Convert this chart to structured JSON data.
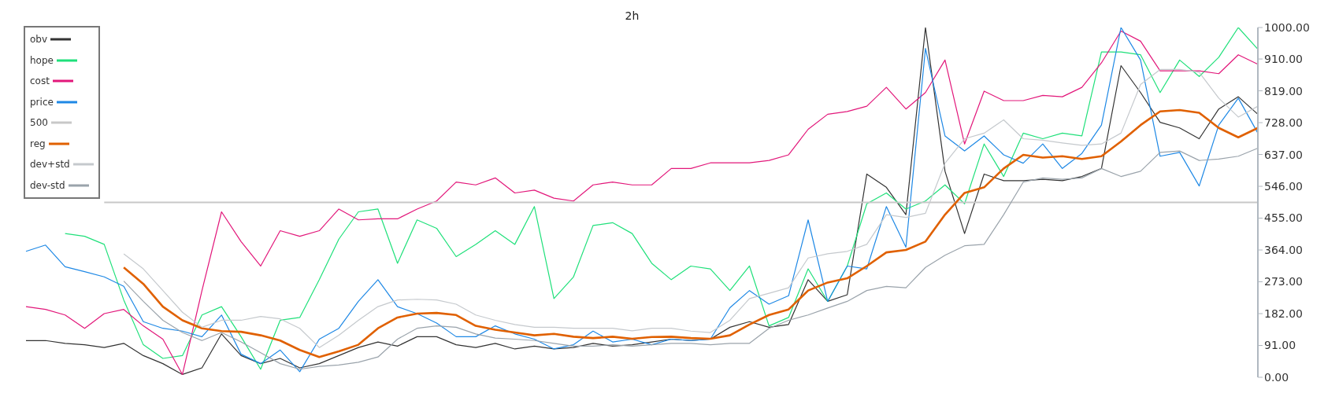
{
  "chart_data": {
    "type": "line",
    "title": "2h",
    "categories": [
      null,
      null,
      null,
      null,
      null,
      null,
      null,
      null,
      null,
      null,
      null,
      null,
      null,
      null,
      null,
      null,
      null,
      null,
      null,
      null,
      null,
      null,
      null,
      null,
      null,
      null,
      null,
      null,
      null,
      null,
      null,
      null,
      null,
      null,
      null,
      null,
      null,
      null,
      null,
      null,
      null,
      null,
      null,
      null,
      null,
      null,
      null,
      null,
      null,
      null,
      null,
      null,
      null,
      null,
      null,
      null,
      null,
      null,
      null,
      null,
      null,
      null,
      null,
      null
    ],
    "series": [
      {
        "name": "obv",
        "color": "#333333",
        "values": [
          105,
          105,
          97,
          93,
          85,
          97,
          62,
          39,
          8,
          27,
          124,
          62,
          39,
          54,
          27,
          39,
          62,
          85,
          101,
          89,
          116,
          116,
          93,
          85,
          97,
          81,
          89,
          81,
          85,
          97,
          89,
          93,
          101,
          109,
          105,
          109,
          143,
          159,
          143,
          151,
          279,
          217,
          236,
          581,
          543,
          465,
          1000,
          589,
          411,
          581,
          562,
          562,
          566,
          562,
          574,
          597,
          891,
          814,
          729,
          713,
          682,
          767,
          802,
          752
        ]
      },
      {
        "name": "hope",
        "color": "#1fe07a",
        "values": [
          null,
          null,
          411,
          403,
          380,
          221,
          93,
          54,
          62,
          178,
          202,
          116,
          23,
          163,
          171,
          279,
          395,
          473,
          481,
          326,
          450,
          426,
          345,
          380,
          419,
          380,
          488,
          225,
          287,
          434,
          442,
          411,
          326,
          279,
          318,
          310,
          248,
          318,
          147,
          171,
          310,
          217,
          318,
          496,
          527,
          481,
          504,
          550,
          496,
          667,
          574,
          698,
          682,
          698,
          690,
          930,
          930,
          922,
          814,
          907,
          860,
          915,
          1000,
          938
        ]
      },
      {
        "name": "cost",
        "color": "#e2177a",
        "values": [
          202,
          194,
          178,
          140,
          182,
          194,
          147,
          109,
          8,
          248,
          473,
          388,
          318,
          419,
          403,
          419,
          481,
          450,
          453,
          453,
          481,
          504,
          558,
          550,
          570,
          527,
          535,
          512,
          504,
          550,
          558,
          550,
          550,
          597,
          597,
          613,
          613,
          613,
          620,
          636,
          709,
          752,
          760,
          775,
          829,
          767,
          814,
          907,
          667,
          818,
          791,
          791,
          806,
          802,
          829,
          899,
          990,
          961,
          876,
          876,
          876,
          868,
          922,
          895
        ]
      },
      {
        "name": "price",
        "color": "#1e88e5",
        "values": [
          360,
          378,
          316,
          302,
          287,
          260,
          159,
          140,
          132,
          116,
          178,
          66,
          39,
          78,
          16,
          109,
          140,
          217,
          279,
          202,
          182,
          155,
          116,
          116,
          147,
          124,
          109,
          81,
          93,
          132,
          101,
          109,
          93,
          109,
          105,
          109,
          199,
          248,
          209,
          233,
          450,
          217,
          318,
          310,
          488,
          372,
          940,
          690,
          647,
          690,
          636,
          612,
          667,
          597,
          640,
          721,
          1000,
          907,
          632,
          643,
          547,
          721,
          798,
          698
        ]
      },
      {
        "name": "500",
        "color": "#c8c8c8",
        "values": [
          null,
          null,
          null,
          null,
          500,
          500,
          500,
          500,
          500,
          500,
          500,
          500,
          500,
          500,
          500,
          500,
          500,
          500,
          500,
          500,
          500,
          500,
          500,
          500,
          500,
          500,
          500,
          500,
          500,
          500,
          500,
          500,
          500,
          500,
          500,
          500,
          500,
          500,
          500,
          500,
          500,
          500,
          500,
          500,
          500,
          500,
          500,
          500,
          500,
          500,
          500,
          500,
          500,
          500,
          500,
          500,
          500,
          500,
          500,
          500,
          500,
          500,
          500,
          500
        ]
      },
      {
        "name": "reg",
        "color": "#e06000",
        "values": [
          null,
          null,
          null,
          null,
          null,
          314,
          267,
          202,
          163,
          140,
          132,
          130,
          120,
          105,
          78,
          58,
          74,
          93,
          140,
          171,
          182,
          184,
          178,
          147,
          136,
          128,
          120,
          124,
          116,
          112,
          116,
          110,
          115,
          116,
          112,
          110,
          120,
          151,
          178,
          194,
          248,
          271,
          283,
          318,
          357,
          364,
          388,
          465,
          527,
          543,
          597,
          636,
          628,
          632,
          624,
          632,
          674,
          721,
          760,
          764,
          756,
          713,
          686,
          713
        ]
      },
      {
        "name": "dev+std",
        "color": "#c5c9cd",
        "values": [
          null,
          null,
          null,
          null,
          null,
          353,
          310,
          248,
          186,
          143,
          163,
          163,
          174,
          167,
          140,
          85,
          120,
          163,
          202,
          221,
          223,
          221,
          209,
          178,
          163,
          151,
          143,
          143,
          140,
          140,
          140,
          133,
          140,
          140,
          132,
          128,
          163,
          225,
          240,
          256,
          341,
          353,
          360,
          380,
          465,
          457,
          469,
          612,
          682,
          698,
          736,
          682,
          678,
          670,
          663,
          667,
          698,
          837,
          880,
          880,
          872,
          798,
          744,
          775
        ]
      },
      {
        "name": "dev-std",
        "color": "#9aa3ab",
        "values": [
          null,
          null,
          null,
          null,
          null,
          275,
          217,
          163,
          128,
          105,
          128,
          101,
          70,
          39,
          23,
          31,
          35,
          43,
          58,
          109,
          140,
          147,
          143,
          124,
          112,
          109,
          105,
          97,
          89,
          89,
          93,
          89,
          93,
          97,
          97,
          93,
          97,
          97,
          140,
          163,
          178,
          198,
          217,
          248,
          260,
          256,
          314,
          349,
          376,
          380,
          465,
          558,
          570,
          566,
          570,
          597,
          574,
          589,
          643,
          647,
          620,
          624,
          632,
          655
        ]
      }
    ],
    "ylim": [
      0,
      1000
    ],
    "yticks": [
      {
        "value": 0,
        "label": "0.00"
      },
      {
        "value": 91,
        "label": "91.00"
      },
      {
        "value": 182,
        "label": "182.00"
      },
      {
        "value": 273,
        "label": "273.00"
      },
      {
        "value": 364,
        "label": "364.00"
      },
      {
        "value": 455,
        "label": "455.00"
      },
      {
        "value": 546,
        "label": "546.00"
      },
      {
        "value": 637,
        "label": "637.00"
      },
      {
        "value": 728,
        "label": "728.00"
      },
      {
        "value": 819,
        "label": "819.00"
      },
      {
        "value": 910,
        "label": "910.00"
      },
      {
        "value": 1000,
        "label": "1000.00"
      }
    ],
    "tick_labels": "y",
    "grid": false,
    "legend": "top left",
    "marker": "none",
    "line_style": "solid"
  }
}
